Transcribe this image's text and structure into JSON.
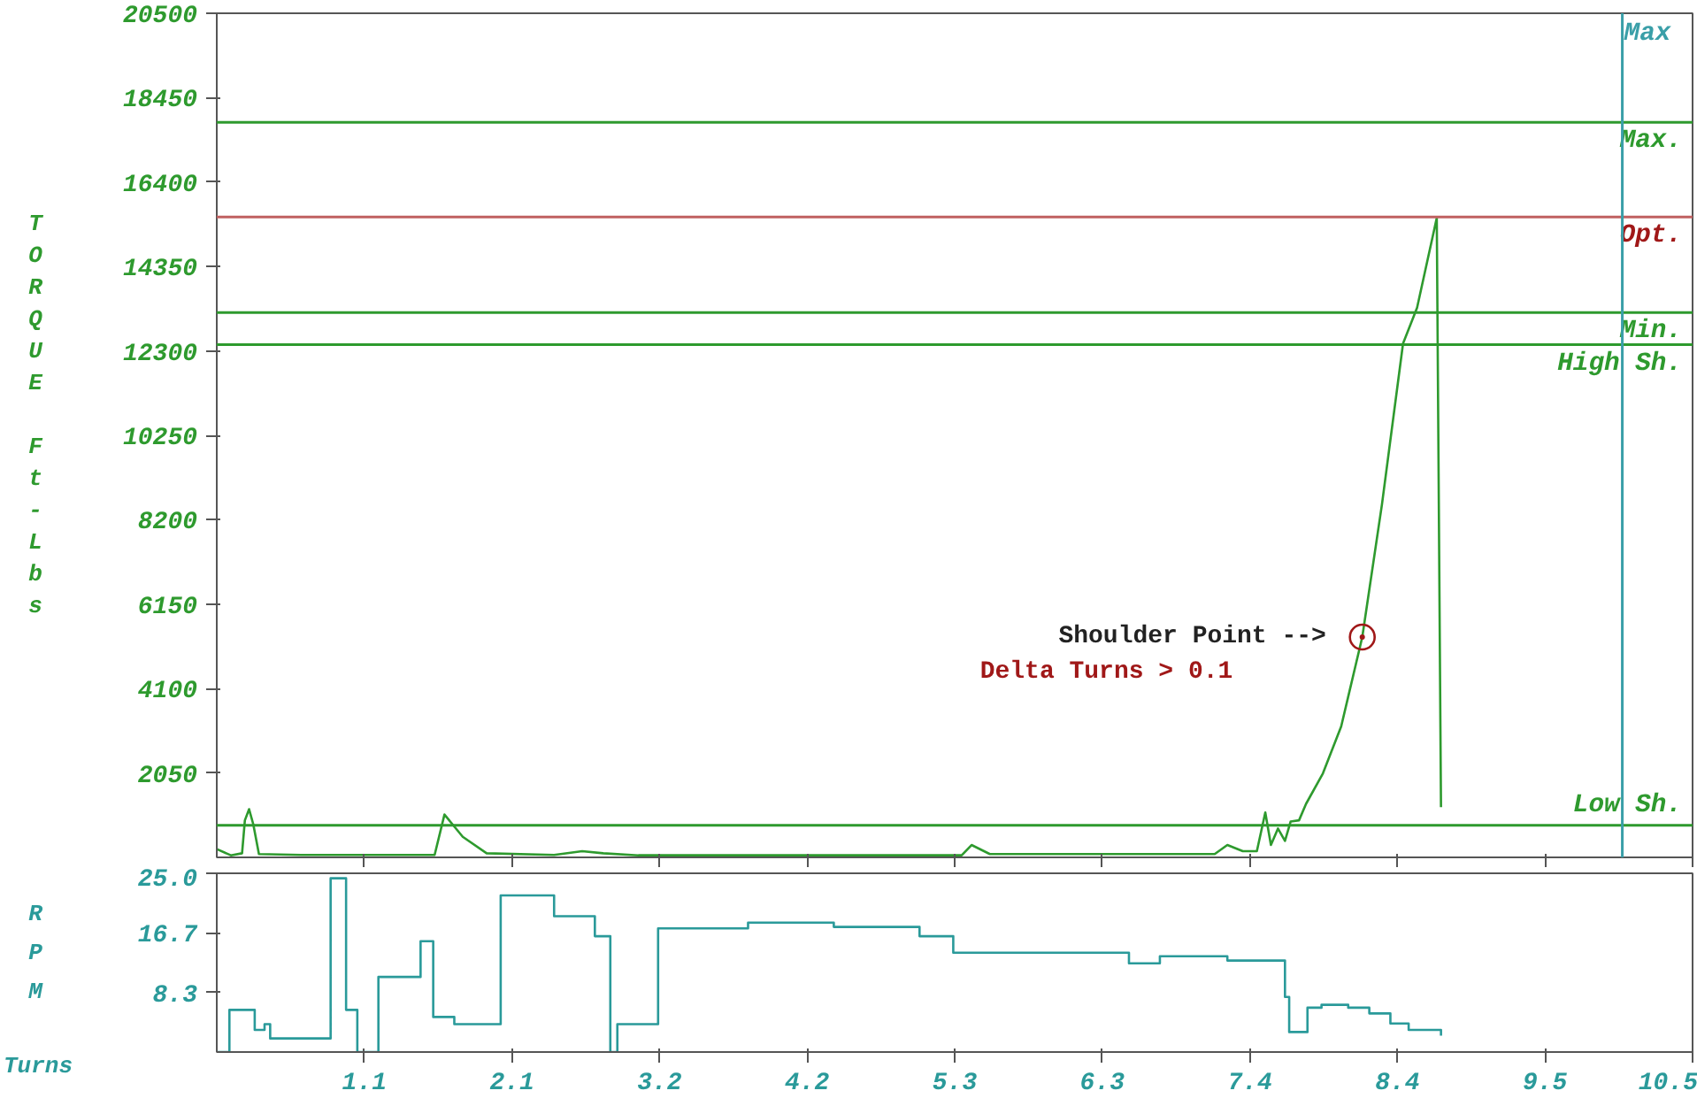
{
  "chart_data": [
    {
      "type": "line",
      "ylabel": "TORQUE Ft-Lbs",
      "x": [
        0,
        0.1,
        0.18,
        0.2,
        0.23,
        0.26,
        0.3,
        0.6,
        1.55,
        1.62,
        1.75,
        1.92,
        2.4,
        2.6,
        2.75,
        3.0,
        5.3,
        5.37,
        5.5,
        7.1,
        7.19,
        7.3,
        7.4,
        7.46,
        7.5,
        7.55,
        7.6,
        7.64,
        7.7,
        7.75,
        7.87,
        8.0,
        8.15,
        8.29,
        8.44,
        8.54,
        8.68,
        8.71
      ],
      "series": [
        {
          "color": "#2e9a2e",
          "values": [
            200,
            50,
            100,
            900,
            1170,
            800,
            80,
            60,
            60,
            1040,
            500,
            100,
            60,
            150,
            100,
            50,
            50,
            300,
            80,
            80,
            300,
            150,
            150,
            1090,
            300,
            700,
            400,
            870,
            900,
            1300,
            2040,
            3180,
            5350,
            8570,
            12480,
            13350,
            15530,
            1220
          ]
        }
      ],
      "ylim": [
        0,
        20500
      ],
      "yticks": [
        2050,
        4100,
        6150,
        8200,
        10250,
        12300,
        14350,
        16400,
        18450,
        20500
      ],
      "xlim": [
        0,
        10.5
      ],
      "xticks": [
        1.05,
        2.1,
        3.15,
        4.2,
        5.25,
        6.3,
        7.35,
        8.4,
        9.45,
        10.5
      ],
      "tick_labels": "y",
      "ref_lines": [
        {
          "axis": "y",
          "value": 17850,
          "label": "Max.",
          "color": "#2e9a2e"
        },
        {
          "axis": "y",
          "value": 15550,
          "label": "Opt.",
          "color": "#c06060"
        },
        {
          "axis": "y",
          "value": 13230,
          "label": "Min.",
          "color": "#2e9a2e"
        },
        {
          "axis": "y",
          "value": 12450,
          "label": "High Sh.",
          "color": "#2e9a2e"
        },
        {
          "axis": "y",
          "value": 780,
          "label": "Low Sh.",
          "color": "#2e9a2e"
        },
        {
          "axis": "x",
          "value": 10.0,
          "label": "Max",
          "color": "#3a9fa8"
        }
      ],
      "annotations": [
        {
          "text": "Shoulder Point  -->",
          "x": 8.15,
          "y": 5350
        },
        "Delta Turns > 0.1"
      ]
    },
    {
      "type": "step",
      "ylabel": "RPM",
      "xlabel": "Turns",
      "x": [
        0,
        0.09,
        0.27,
        0.34,
        0.38,
        0.81,
        0.92,
        1.0,
        1.15,
        1.45,
        1.54,
        1.69,
        2.02,
        2.4,
        2.69,
        2.8,
        2.85,
        3.14,
        3.78,
        4.39,
        5.0,
        5.24,
        6.49,
        6.71,
        7.19,
        7.6,
        7.63,
        7.76,
        7.86,
        8.05,
        8.2,
        8.35,
        8.48,
        8.71
      ],
      "series": [
        {
          "color": "#2a9a9a",
          "values": [
            0,
            5.9,
            3.1,
            3.9,
            1.9,
            24.3,
            5.9,
            0,
            10.5,
            15.5,
            4.9,
            3.9,
            21.9,
            19.0,
            16.2,
            0,
            3.9,
            17.3,
            18.1,
            17.5,
            16.2,
            13.9,
            12.4,
            13.4,
            12.8,
            7.7,
            2.8,
            6.2,
            6.6,
            6.2,
            5.4,
            4.0,
            3.1,
            2.3
          ]
        }
      ],
      "ylim": [
        0,
        25
      ],
      "yticks": [
        8.3,
        16.7,
        {
          "value": 25,
          "label": "25.0"
        }
      ],
      "xlim": [
        0,
        10.5
      ],
      "xticks": [
        {
          "value": 1.05,
          "label": "1.1"
        },
        2.1,
        {
          "value": 3.15,
          "label": "3.2"
        },
        4.2,
        {
          "value": 5.25,
          "label": "5.3"
        },
        6.3,
        {
          "value": 7.35,
          "label": "7.4"
        },
        8.4,
        {
          "value": 9.45,
          "label": "9.5"
        },
        10.5
      ],
      "tick_labels": "xy"
    }
  ]
}
